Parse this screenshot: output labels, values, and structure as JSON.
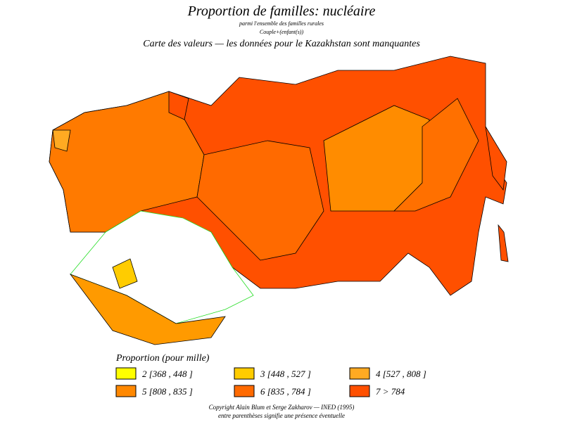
{
  "header": {
    "title": "Proportion de familles: nucléaire",
    "subtitle": "parmi l'ensemble des familles rurales",
    "subtitle2": "Couple+(enfant(s))",
    "note": "Carte des valeurs — les données pour le Kazakhstan sont manquantes"
  },
  "legend": {
    "title": "Proportion (pour mille)",
    "items": [
      {
        "label": "2 [368 , 448 ]",
        "color": "#ffff00"
      },
      {
        "label": "3 [448 , 527 ]",
        "color": "#ffcc00"
      },
      {
        "label": "4 [527 , 808 ]",
        "color": "#ffaa22"
      },
      {
        "label": "5 [808 , 835 ]",
        "color": "#ff8800"
      },
      {
        "label": "6 [835 , 784 ]",
        "color": "#ff6a00"
      },
      {
        "label": "7 > 784",
        "color": "#ff5000"
      }
    ]
  },
  "footer": {
    "line1": "Copyright Alain Blum et Serge Zakharov — INED (1995)",
    "line2": "entre parenthèses signifie une présence éventuelle"
  }
}
